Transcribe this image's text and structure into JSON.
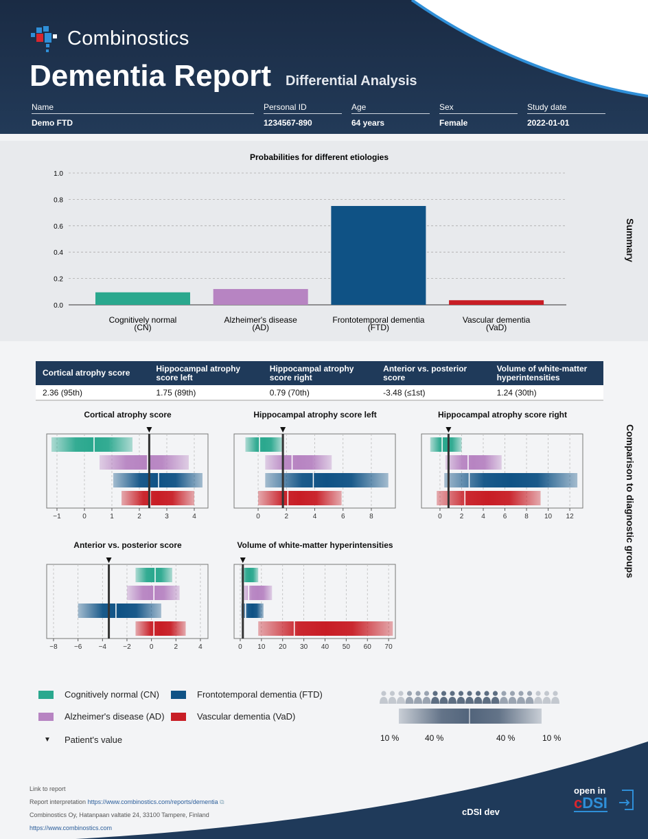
{
  "header": {
    "brand": "Combinostics",
    "title": "Dementia Report",
    "subtitle": "Differential Analysis",
    "fields": [
      {
        "label": "Name",
        "value": "Demo FTD"
      },
      {
        "label": "Personal ID",
        "value": "1234567-890"
      },
      {
        "label": "Age",
        "value": "64 years"
      },
      {
        "label": "Sex",
        "value": "Female"
      },
      {
        "label": "Study date",
        "value": "2022-01-01"
      }
    ]
  },
  "sections": {
    "summary": "Summary",
    "comparison": "Comparison to diagnostic groups"
  },
  "colors": {
    "CN": "#2aa88e",
    "AD": "#b784c2",
    "FTD": "#0f5285",
    "VaD": "#c81d25",
    "navy": "#1f3a5a"
  },
  "chart_data": [
    {
      "type": "bar",
      "title": "Probabilities for different etiologies",
      "categories": [
        "Cognitively normal\n(CN)",
        "Alzheimer's disease\n(AD)",
        "Frontotemporal dementia\n(FTD)",
        "Vascular dementia\n(VaD)"
      ],
      "values": [
        0.095,
        0.12,
        0.75,
        0.035
      ],
      "ylim": [
        0,
        1
      ],
      "yticks": [
        "0.0",
        "0.2",
        "0.4",
        "0.6",
        "0.8",
        "1.0"
      ],
      "grid": true
    },
    {
      "type": "range",
      "title": "Cortical atrophy score",
      "xlim": [
        -1.375,
        4.5
      ],
      "xticks": [
        -1,
        0,
        1,
        2,
        3,
        4
      ],
      "patient": 2.36,
      "groups": [
        [
          -1.2,
          0.35,
          1.75
        ],
        [
          0.55,
          2.3,
          3.8
        ],
        [
          1.05,
          2.7,
          4.3
        ],
        [
          1.35,
          2.4,
          4.0
        ]
      ]
    },
    {
      "type": "range",
      "title": "Hippocampal atrophy score left",
      "xlim": [
        -1.7,
        9.7
      ],
      "xticks": [
        0,
        2,
        4,
        6,
        8
      ],
      "patient": 1.75,
      "groups": [
        [
          -0.9,
          0.1,
          1.7
        ],
        [
          0.5,
          2.4,
          5.2
        ],
        [
          0.5,
          3.9,
          9.2
        ],
        [
          0,
          2.1,
          5.9
        ]
      ]
    },
    {
      "type": "range",
      "title": "Hippocampal atrophy score right",
      "xlim": [
        -1.71,
        13.2
      ],
      "xticks": [
        0,
        2,
        4,
        6,
        8,
        10,
        12
      ],
      "patient": 0.79,
      "groups": [
        [
          -0.9,
          0.2,
          2
        ],
        [
          0.5,
          2.6,
          5.7
        ],
        [
          0.4,
          2.7,
          12.7
        ],
        [
          -0.3,
          2.3,
          9.3
        ]
      ]
    },
    {
      "type": "range",
      "title": "Anterior vs. posterior score",
      "xlim": [
        -8.56,
        4.62
      ],
      "xticks": [
        -8,
        -6,
        -4,
        -2,
        0,
        2,
        4
      ],
      "patient": -3.48,
      "groups": [
        [
          -1.3,
          0.3,
          1.7
        ],
        [
          -2,
          0.2,
          2.3
        ],
        [
          -6,
          -2.9,
          0.8
        ],
        [
          -1.3,
          0.2,
          2.8
        ]
      ]
    },
    {
      "type": "range",
      "title": "Volume of white-matter hyperintensities",
      "xlim": [
        -2.9,
        73.2
      ],
      "xticks": [
        0,
        10,
        20,
        30,
        40,
        50,
        60,
        70
      ],
      "patient": 1.24,
      "groups": [
        [
          0.5,
          1.5,
          8.5
        ],
        [
          1.5,
          4,
          15
        ],
        [
          0.5,
          2.5,
          11
        ],
        [
          8.5,
          25.5,
          72
        ]
      ]
    }
  ],
  "table": {
    "headers": [
      "Cortical atrophy score",
      "Hippocampal atrophy score left",
      "Hippocampal atrophy score right",
      "Anterior vs. posterior score",
      "Volume of white-matter hyperintensities"
    ],
    "values": [
      "2.36 (95th)",
      "1.75 (89th)",
      "0.79 (70th)",
      "-3.48 (≤1st)",
      "1.24 (30th)"
    ]
  },
  "legend": {
    "cn": "Cognitively normal (CN)",
    "ad": "Alzheimer's disease (AD)",
    "ftd": "Frontotemporal dementia (FTD)",
    "vad": "Vascular dementia (VaD)",
    "patient": "Patient's value",
    "pct": [
      "10 %",
      "40 %",
      "40 %",
      "10 %"
    ]
  },
  "footer": {
    "link_label": "Link to report",
    "interp_label": "Report interpretation",
    "interp_url": "https://www.combinostics.com/reports/dementia",
    "address": "Combinostics Oy, Hatanpaan valtatie 24, 33100 Tampere, Finland",
    "site": "https://www.combinostics.com",
    "env": "cDSI dev",
    "open_in": "open in",
    "cdsi": "cDSI"
  }
}
